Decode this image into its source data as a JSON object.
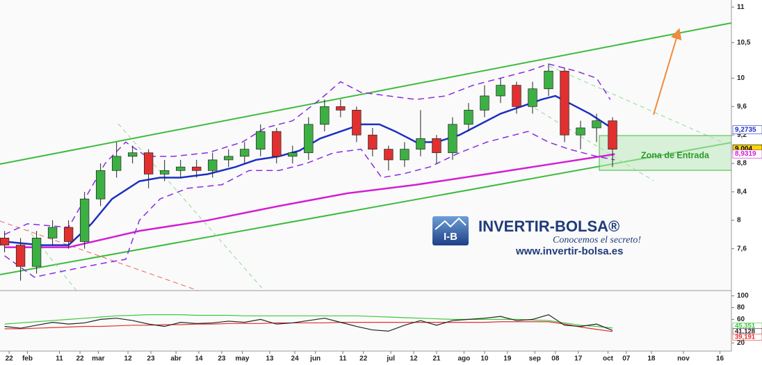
{
  "chart_data": {
    "type": "candlestick",
    "xlim": [
      0,
      320
    ],
    "xticks": [
      {
        "value": 4,
        "label": "22"
      },
      {
        "value": 12,
        "label": "feb"
      },
      {
        "value": 26,
        "label": "11"
      },
      {
        "value": 35,
        "label": "22"
      },
      {
        "value": 43,
        "label": "mar"
      },
      {
        "value": 56,
        "label": "12"
      },
      {
        "value": 66,
        "label": "23"
      },
      {
        "value": 77,
        "label": "abr"
      },
      {
        "value": 87,
        "label": "14"
      },
      {
        "value": 97,
        "label": "23"
      },
      {
        "value": 106,
        "label": "may"
      },
      {
        "value": 118,
        "label": "13"
      },
      {
        "value": 129,
        "label": "24"
      },
      {
        "value": 138,
        "label": "jun"
      },
      {
        "value": 150,
        "label": "11"
      },
      {
        "value": 159,
        "label": "22"
      },
      {
        "value": 171,
        "label": "jul"
      },
      {
        "value": 181,
        "label": "12"
      },
      {
        "value": 191,
        "label": "21"
      },
      {
        "value": 203,
        "label": "ago"
      },
      {
        "value": 212,
        "label": "10"
      },
      {
        "value": 222,
        "label": "19"
      },
      {
        "value": 234,
        "label": "sep"
      },
      {
        "value": 243,
        "label": "08"
      },
      {
        "value": 253,
        "label": "17"
      },
      {
        "value": 266,
        "label": "oct"
      },
      {
        "value": 274,
        "label": "07"
      },
      {
        "value": 285,
        "label": "18"
      },
      {
        "value": 299,
        "label": "nov"
      },
      {
        "value": 315,
        "label": "16"
      }
    ],
    "ylim": [
      7.01,
      11.1
    ],
    "yticks": [
      {
        "value": 7.6,
        "label": "7,6"
      },
      8,
      {
        "value": 8.4,
        "label": "8,4"
      },
      {
        "value": 8.8,
        "label": "8,8"
      },
      {
        "value": 9.2,
        "label": "9,2"
      },
      {
        "value": 9.6,
        "label": "9,6"
      },
      10,
      {
        "value": 10.5,
        "label": "10,5"
      },
      11
    ],
    "up_color": "#3cb043",
    "down_color": "#e03030",
    "x": [
      2,
      9,
      16,
      23,
      30,
      37,
      44,
      51,
      58,
      65,
      72,
      79,
      86,
      93,
      100,
      107,
      114,
      121,
      128,
      135,
      142,
      149,
      156,
      163,
      170,
      177,
      184,
      191,
      198,
      205,
      212,
      219,
      226,
      233,
      240,
      247,
      254,
      261,
      268
    ],
    "open": [
      7.75,
      7.65,
      7.35,
      7.75,
      7.9,
      7.7,
      8.3,
      8.7,
      8.9,
      8.95,
      8.65,
      8.7,
      8.75,
      8.7,
      8.85,
      8.9,
      9.0,
      9.25,
      8.9,
      8.95,
      9.35,
      9.6,
      9.55,
      9.2,
      9.0,
      8.85,
      9.0,
      9.15,
      8.95,
      9.35,
      9.55,
      9.75,
      9.9,
      9.6,
      9.85,
      10.1,
      9.2,
      9.3,
      9.4
    ],
    "high": [
      7.85,
      7.75,
      7.85,
      8.0,
      8.0,
      8.4,
      8.8,
      9.1,
      9.05,
      9.0,
      8.85,
      8.85,
      8.85,
      8.95,
      9.0,
      9.1,
      9.35,
      9.3,
      9.05,
      9.45,
      9.7,
      9.7,
      9.6,
      9.3,
      9.05,
      9.1,
      9.55,
      9.2,
      9.45,
      9.65,
      9.9,
      10.0,
      9.95,
      9.95,
      10.2,
      10.15,
      9.4,
      9.5,
      9.45
    ],
    "low": [
      7.55,
      7.15,
      7.25,
      7.65,
      7.6,
      7.6,
      8.2,
      8.6,
      8.8,
      8.45,
      8.55,
      8.6,
      8.6,
      8.6,
      8.75,
      8.8,
      8.9,
      8.8,
      8.8,
      8.85,
      9.25,
      9.45,
      9.1,
      8.9,
      8.7,
      8.75,
      8.9,
      8.8,
      8.85,
      9.25,
      9.45,
      9.65,
      9.5,
      9.5,
      9.75,
      9.1,
      9.0,
      9.1,
      8.75
    ],
    "close": [
      7.65,
      7.35,
      7.75,
      7.9,
      7.7,
      8.3,
      8.7,
      8.9,
      8.95,
      8.65,
      8.7,
      8.75,
      8.7,
      8.85,
      8.9,
      9.0,
      9.25,
      8.9,
      8.95,
      9.35,
      9.6,
      9.55,
      9.2,
      9.0,
      8.85,
      9.0,
      9.15,
      8.95,
      9.35,
      9.55,
      9.75,
      9.9,
      9.6,
      9.85,
      10.1,
      9.2,
      9.3,
      9.4,
      9.0
    ],
    "series": [
      {
        "color": "#1c2fc4",
        "width": 2.5,
        "x": [
          2,
          18,
          30,
          40,
          49,
          61,
          70,
          79,
          91,
          103,
          112,
          122,
          131,
          140,
          149,
          158,
          166,
          173,
          182,
          191,
          201,
          210,
          219,
          228,
          237,
          243,
          249,
          258,
          269
        ],
        "values": [
          7.7,
          7.65,
          7.65,
          7.95,
          8.3,
          8.55,
          8.6,
          8.6,
          8.65,
          8.75,
          8.85,
          8.9,
          8.98,
          9.15,
          9.25,
          9.35,
          9.35,
          9.25,
          9.1,
          9.1,
          9.2,
          9.35,
          9.5,
          9.6,
          9.7,
          9.75,
          9.65,
          9.5,
          9.27
        ]
      },
      {
        "color": "#d21fd2",
        "width": 2.5,
        "x": [
          2,
          30,
          61,
          91,
          122,
          152,
          182,
          213,
          243,
          269
        ],
        "values": [
          7.62,
          7.62,
          7.85,
          8.0,
          8.2,
          8.38,
          8.5,
          8.65,
          8.8,
          8.93
        ]
      },
      {
        "color": "#8a2be2",
        "width": 1.5,
        "dashed": true,
        "x": [
          2,
          12,
          30,
          46,
          55,
          64,
          76,
          91,
          106,
          116,
          128,
          140,
          149,
          158,
          170,
          182,
          195,
          207,
          219,
          231,
          240,
          252,
          261,
          267
        ],
        "values": [
          7.8,
          7.95,
          7.9,
          8.8,
          9.1,
          8.9,
          8.9,
          8.95,
          9.1,
          9.3,
          9.4,
          9.7,
          9.95,
          9.8,
          9.75,
          9.7,
          9.75,
          9.9,
          10.0,
          10.1,
          10.2,
          10.1,
          10.0,
          9.7
        ]
      },
      {
        "color": "#8a2be2",
        "width": 1.5,
        "dashed": true,
        "x": [
          2,
          15,
          30,
          46,
          55,
          61,
          70,
          82,
          97,
          109,
          122,
          134,
          146,
          158,
          167,
          176,
          188,
          201,
          213,
          225,
          231,
          240,
          249,
          261,
          269
        ],
        "values": [
          7.5,
          7.2,
          7.3,
          7.4,
          7.45,
          8.0,
          8.3,
          8.45,
          8.5,
          8.7,
          8.7,
          8.8,
          8.95,
          9.0,
          8.6,
          8.65,
          8.75,
          8.95,
          9.1,
          9.2,
          9.25,
          9.1,
          9.0,
          8.9,
          8.85
        ]
      }
    ],
    "last_values": [
      {
        "value": 9.2735,
        "label": "9,2735",
        "bg": "#ffffff",
        "fg": "#1c2fc4"
      },
      {
        "value": 9.004,
        "label": "9,004",
        "bg": "#f5d800",
        "fg": "#000000"
      },
      {
        "value": 8.9319,
        "label": "8,9319",
        "bg": "#ffffff",
        "fg": "#d21fd2"
      }
    ],
    "zone_label": "Zona de Entrada",
    "watermark": {
      "mark": "I-B",
      "brand": "INVERTIR-BOLSA®",
      "slogan": "Conocemos el secreto!",
      "url": "www.invertir-bolsa.es"
    },
    "oscillator": {
      "ylim": [
        6,
        109
      ],
      "yticks": [
        20,
        60,
        80,
        100
      ],
      "series": [
        {
          "color": "#3cc83c",
          "values": [
            52,
            54,
            56,
            58,
            60,
            62,
            64,
            66,
            67,
            68,
            68,
            68,
            67,
            67,
            67,
            66,
            66,
            66,
            66,
            66,
            66,
            66,
            66,
            65,
            64,
            63,
            62,
            61,
            60,
            60,
            60,
            60,
            60,
            59,
            58,
            54,
            50,
            48,
            45.351
          ],
          "value_label": "45,351"
        },
        {
          "color": "#e03030",
          "values": [
            44,
            44,
            45,
            46,
            47,
            48,
            48,
            49,
            50,
            50,
            51,
            51,
            52,
            52,
            53,
            53,
            53,
            54,
            54,
            54,
            54,
            55,
            55,
            55,
            55,
            55,
            55,
            55,
            55,
            55,
            55,
            56,
            56,
            56,
            56,
            52,
            47,
            43,
            39.191
          ],
          "value_label": "39,191"
        },
        {
          "color": "#222222",
          "values": [
            48,
            45,
            50,
            55,
            52,
            54,
            60,
            62,
            58,
            52,
            48,
            55,
            53,
            54,
            57,
            55,
            60,
            52,
            54,
            58,
            62,
            55,
            48,
            42,
            40,
            50,
            58,
            50,
            58,
            60,
            62,
            65,
            58,
            60,
            68,
            50,
            48,
            52,
            41.128
          ],
          "value_label": "41,128"
        }
      ]
    }
  }
}
